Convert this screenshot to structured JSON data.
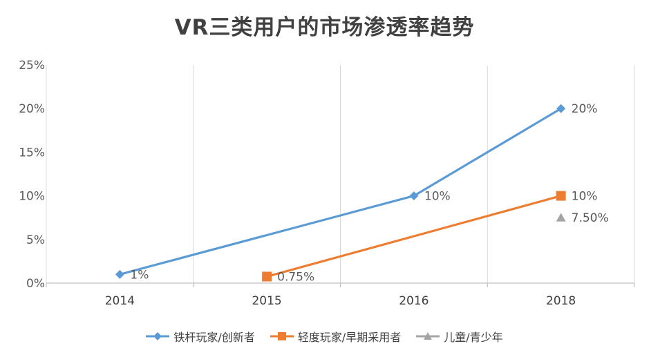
{
  "chart_data": {
    "type": "line",
    "title": "VR三类用户的市场渗透率趋势",
    "categories": [
      "2014",
      "2015",
      "2016",
      "2018"
    ],
    "y_ticks": [
      "0%",
      "5%",
      "10%",
      "15%",
      "20%",
      "25%"
    ],
    "ylim": [
      0,
      25
    ],
    "xlabel": "",
    "ylabel": "",
    "grid": "vertical",
    "legend_position": "bottom",
    "series": [
      {
        "name": "铁杆玩家/创新者",
        "color": "#5b9bd5",
        "marker": "diamond",
        "values": [
          1,
          null,
          10,
          20
        ],
        "labels": [
          "1%",
          null,
          "10%",
          "20%"
        ]
      },
      {
        "name": "轻度玩家/早期采用者",
        "color": "#ed7d31",
        "marker": "square",
        "values": [
          null,
          0.75,
          null,
          10
        ],
        "labels": [
          null,
          "0.75%",
          null,
          "10%"
        ]
      },
      {
        "name": "儿童/青少年",
        "color": "#a5a5a5",
        "marker": "triangle",
        "values": [
          null,
          null,
          null,
          7.5
        ],
        "labels": [
          null,
          null,
          null,
          "7.50%"
        ]
      }
    ]
  }
}
